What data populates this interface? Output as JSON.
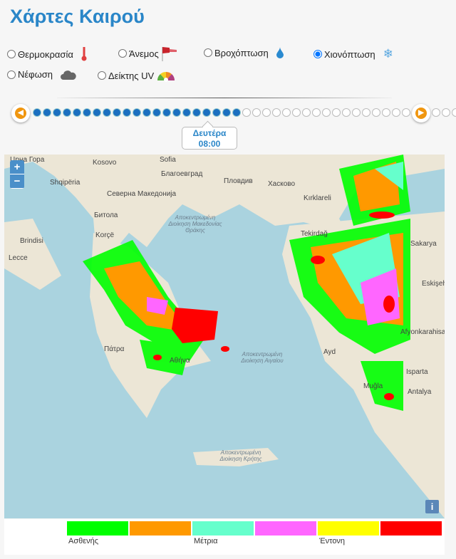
{
  "title": "Χάρτες Καιρού",
  "layers": [
    {
      "label": "Θερμοκρασία",
      "icon": "thermometer-icon",
      "checked": false
    },
    {
      "label": "Άνεμος",
      "icon": "windsock-icon",
      "checked": false
    },
    {
      "label": "Βροχόπτωση",
      "icon": "raindrop-icon",
      "checked": false
    },
    {
      "label": "Χιονόπτωση",
      "icon": "snowflake-icon",
      "checked": true
    },
    {
      "label": "Νέφωση",
      "icon": "cloud-icon",
      "checked": false
    },
    {
      "label": "Δείκτης UV",
      "icon": "uv-gauge-icon",
      "checked": false
    }
  ],
  "timeline": {
    "total_steps": 44,
    "current_step": 21,
    "day": "Δευτέρα",
    "time": "08:00"
  },
  "map": {
    "zoom_in": "+",
    "zoom_out": "−",
    "info": "i",
    "labels": [
      "Црна Гора",
      "Kosovo",
      "Sofia",
      "Благоевград",
      "Пловдив",
      "Хасково",
      "Shqipëria",
      "Северна Македонија",
      "Битола",
      "Korçë",
      "Kırklareli",
      "Tekirdağ",
      "Brindisi",
      "Lecce",
      "Πάτρα",
      "Αθήνα",
      "Ayd",
      "Muğla",
      "Isparta",
      "Antalya",
      "Sakarya",
      "Eskişehir",
      "Afyonkarahisar"
    ],
    "region_labels": [
      "Αποκεντρωμένη Διοίκηση Μακεδονίας Θράκης",
      "Αποκεντρωμένη Διοίκηση Αιγαίου",
      "Αποκεντρωμένη Διοίκηση Κρήτης"
    ]
  },
  "legend": {
    "colors": [
      "#00ff00",
      "#ff9900",
      "#66ffcc",
      "#ff66ff",
      "#ffff00",
      "#ff0000"
    ],
    "labels": [
      "Ασθενής",
      "Μέτρια",
      "Έντονη"
    ]
  }
}
